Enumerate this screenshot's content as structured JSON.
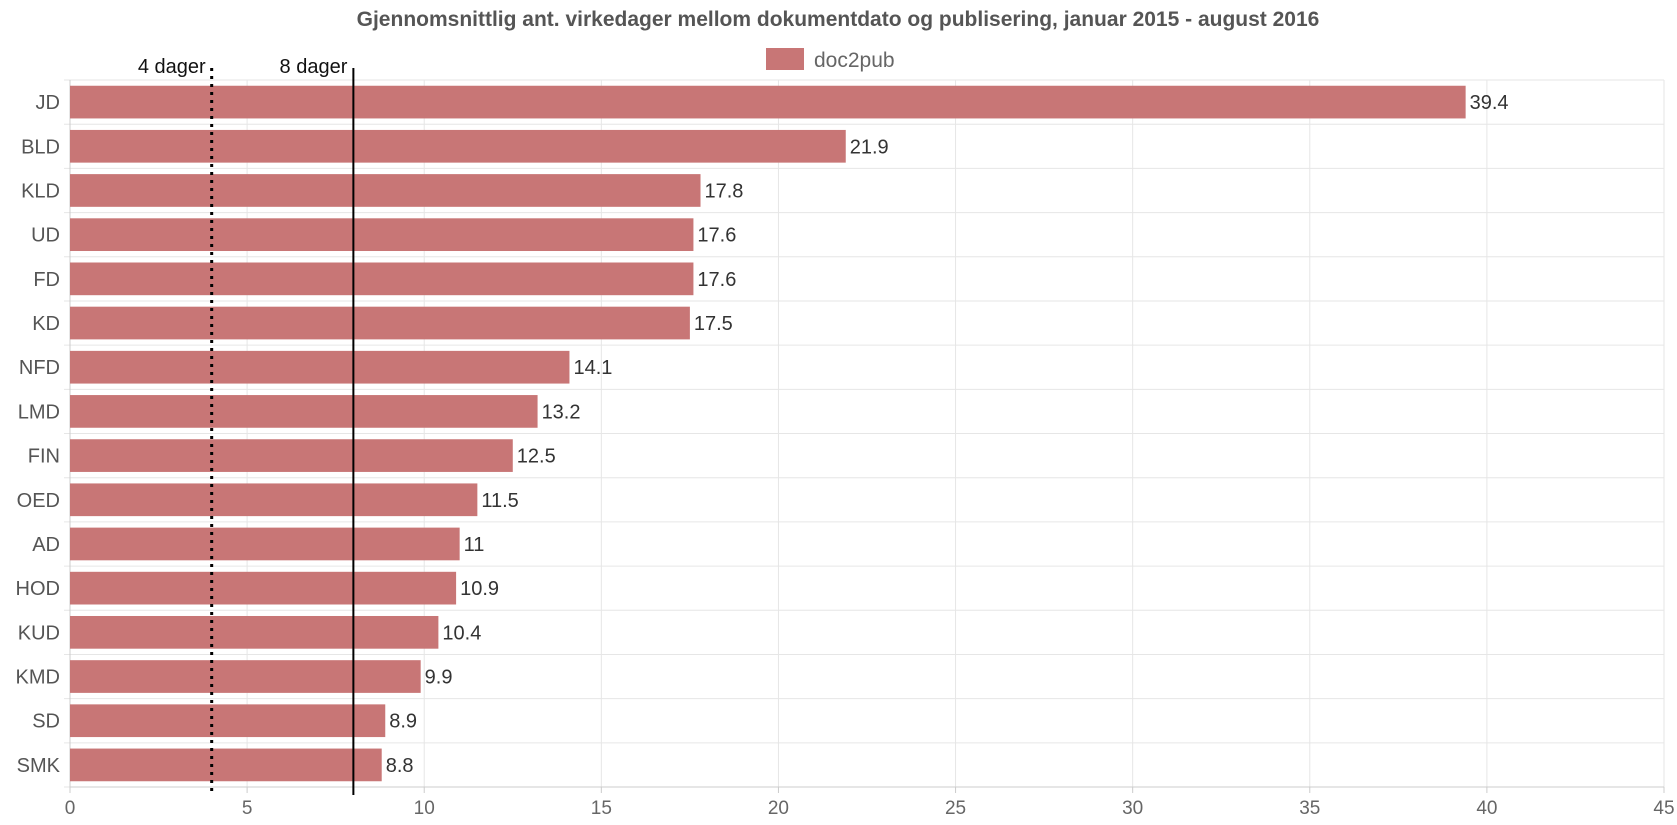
{
  "chart_data": {
    "type": "bar",
    "orientation": "horizontal",
    "title": "Gjennomsnittlig ant. virkedager mellom dokumentdato og publisering, januar 2015 - august 2016",
    "legend": {
      "position": "top-center",
      "entries": [
        "doc2pub"
      ]
    },
    "categories": [
      "JD",
      "BLD",
      "KLD",
      "UD",
      "FD",
      "KD",
      "NFD",
      "LMD",
      "FIN",
      "OED",
      "AD",
      "HOD",
      "KUD",
      "KMD",
      "SD",
      "SMK"
    ],
    "series": [
      {
        "name": "doc2pub",
        "color": "#c87676",
        "values": [
          39.4,
          21.9,
          17.8,
          17.6,
          17.6,
          17.5,
          14.1,
          13.2,
          12.5,
          11.5,
          11,
          10.9,
          10.4,
          9.9,
          8.9,
          8.8
        ]
      }
    ],
    "data_labels": [
      "39.4",
      "21.9",
      "17.8",
      "17.6",
      "17.6",
      "17.5",
      "14.1",
      "13.2",
      "12.5",
      "11.5",
      "11",
      "10.9",
      "10.4",
      "9.9",
      "8.9",
      "8.8"
    ],
    "xlim": [
      0,
      45
    ],
    "xticks": [
      0,
      5,
      10,
      15,
      20,
      25,
      30,
      35,
      40,
      45
    ],
    "grid": true,
    "reference_lines": [
      {
        "value": 4,
        "label": "4 dager",
        "style": "dotted"
      },
      {
        "value": 8,
        "label": "8 dager",
        "style": "solid"
      }
    ]
  }
}
